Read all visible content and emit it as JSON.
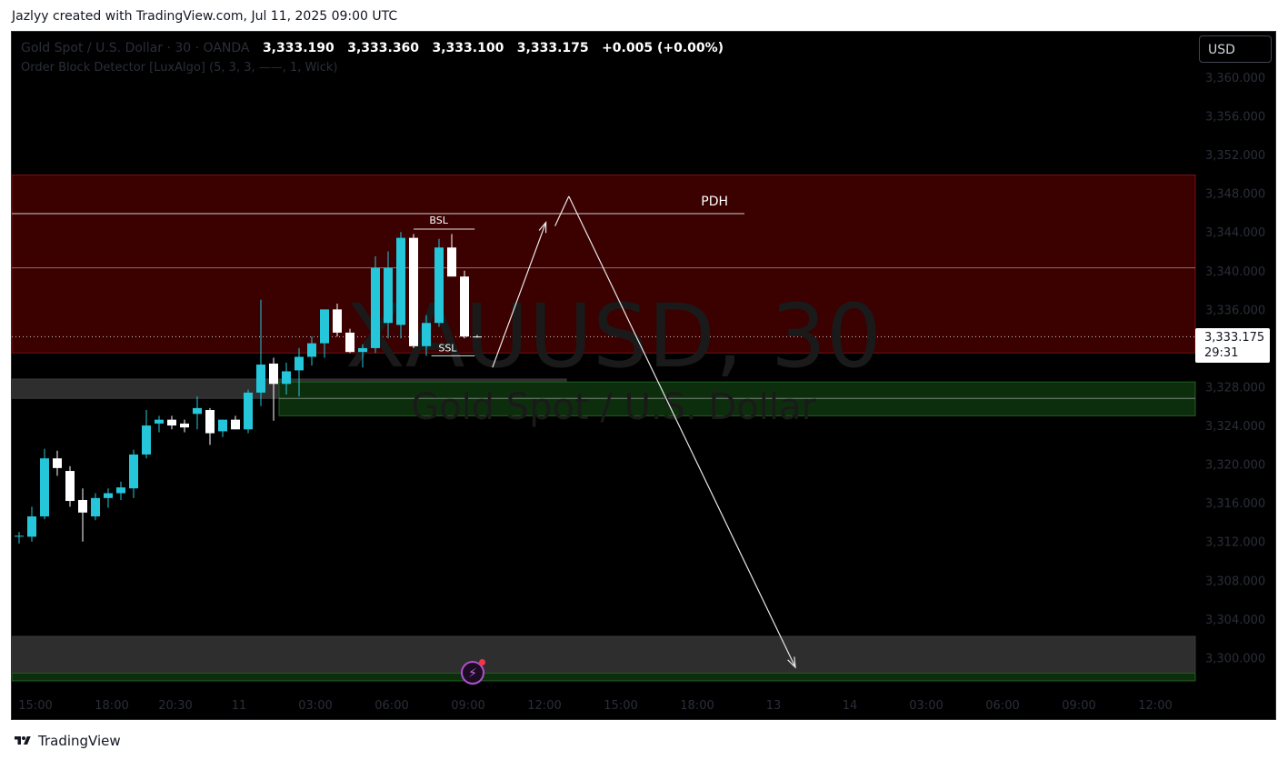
{
  "caption": "Jazlyy created with TradingView.com, Jul 11, 2025 09:00 UTC",
  "legend": {
    "symbol_desc": "Gold Spot / U.S. Dollar · 30 · OANDA",
    "open": "3,333.190",
    "high": "3,333.360",
    "low": "3,333.100",
    "close": "3,333.175",
    "change": "+0.005 (+0.00%)",
    "indicator": "Order Block Detector [LuxAlgo] (5, 3, 3, ——, 1, Wick)"
  },
  "currency_button": "USD",
  "last_price": {
    "price": "3,333.175",
    "countdown": "29:31"
  },
  "watermark": {
    "line1": "XAUUSD, 30",
    "line2": "Gold Spot / U.S. Dollar"
  },
  "brand": "TradingView",
  "colors": {
    "bull": "#26c6da",
    "bear": "#ffffff",
    "resistance_zone": "#3b0000",
    "demand_zone": "#0d2e0d",
    "gray_zone": "#2e2e2e",
    "background": "#000000"
  },
  "chart_data": {
    "type": "candlestick",
    "y_axis": {
      "min": 3296,
      "max": 3362,
      "ticks": [
        3360,
        3356,
        3352,
        3348,
        3344,
        3340,
        3336,
        3332,
        3328,
        3324,
        3320,
        3316,
        3312,
        3308,
        3304,
        3300
      ],
      "tick_labels": [
        "3,360.000",
        "3,356.000",
        "3,352.000",
        "3,348.000",
        "3,344.000",
        "3,340.000",
        "3,336.000",
        "3,332.000",
        "3,328.000",
        "3,324.000",
        "3,320.000",
        "3,316.000",
        "3,312.000",
        "3,308.000",
        "3,304.000",
        "3,300.000"
      ]
    },
    "x_axis": {
      "labels": [
        "15:00",
        "18:00",
        "20:30",
        "11",
        "03:00",
        "06:00",
        "09:00",
        "12:00",
        "15:00",
        "18:00",
        "13",
        "14",
        "03:00",
        "06:00",
        "09:00",
        "12:00"
      ],
      "label_bar_index": [
        0,
        6,
        11,
        16,
        22,
        28,
        34,
        40,
        46,
        52,
        58,
        64,
        70,
        76,
        82,
        88
      ]
    },
    "candles": [
      {
        "o": 3312.6,
        "h": 3313.0,
        "l": 3311.8,
        "c": 3312.6
      },
      {
        "o": 3312.5,
        "h": 3315.6,
        "l": 3312.0,
        "c": 3314.6
      },
      {
        "o": 3314.6,
        "h": 3321.6,
        "l": 3314.3,
        "c": 3320.6
      },
      {
        "o": 3320.6,
        "h": 3321.4,
        "l": 3318.8,
        "c": 3319.6
      },
      {
        "o": 3319.3,
        "h": 3319.8,
        "l": 3315.6,
        "c": 3316.2
      },
      {
        "o": 3316.3,
        "h": 3317.5,
        "l": 3312.0,
        "c": 3315.0
      },
      {
        "o": 3314.6,
        "h": 3317.0,
        "l": 3314.2,
        "c": 3316.5
      },
      {
        "o": 3316.5,
        "h": 3317.5,
        "l": 3315.5,
        "c": 3317.0
      },
      {
        "o": 3317.0,
        "h": 3318.2,
        "l": 3316.3,
        "c": 3317.6
      },
      {
        "o": 3317.5,
        "h": 3321.5,
        "l": 3316.5,
        "c": 3321.0
      },
      {
        "o": 3321.0,
        "h": 3325.6,
        "l": 3320.6,
        "c": 3324.0
      },
      {
        "o": 3324.2,
        "h": 3325.0,
        "l": 3323.3,
        "c": 3324.6
      },
      {
        "o": 3324.6,
        "h": 3325.0,
        "l": 3323.6,
        "c": 3324.0
      },
      {
        "o": 3324.2,
        "h": 3324.6,
        "l": 3323.3,
        "c": 3323.8
      },
      {
        "o": 3325.2,
        "h": 3327.0,
        "l": 3323.6,
        "c": 3325.8
      },
      {
        "o": 3325.6,
        "h": 3325.8,
        "l": 3322.0,
        "c": 3323.2
      },
      {
        "o": 3323.4,
        "h": 3324.6,
        "l": 3322.8,
        "c": 3324.6
      },
      {
        "o": 3324.6,
        "h": 3325.0,
        "l": 3323.6,
        "c": 3323.6
      },
      {
        "o": 3323.6,
        "h": 3327.7,
        "l": 3323.2,
        "c": 3327.4
      },
      {
        "o": 3327.4,
        "h": 3337.0,
        "l": 3326.0,
        "c": 3330.3
      },
      {
        "o": 3330.4,
        "h": 3331.0,
        "l": 3324.5,
        "c": 3328.3
      },
      {
        "o": 3328.3,
        "h": 3330.5,
        "l": 3327.2,
        "c": 3329.6
      },
      {
        "o": 3329.7,
        "h": 3332.0,
        "l": 3327.0,
        "c": 3331.1
      },
      {
        "o": 3331.1,
        "h": 3333.2,
        "l": 3330.2,
        "c": 3332.5
      },
      {
        "o": 3332.5,
        "h": 3336.0,
        "l": 3331.0,
        "c": 3336.0
      },
      {
        "o": 3336.0,
        "h": 3336.6,
        "l": 3333.2,
        "c": 3333.6
      },
      {
        "o": 3333.6,
        "h": 3334.0,
        "l": 3331.5,
        "c": 3331.6
      },
      {
        "o": 3331.6,
        "h": 3332.4,
        "l": 3330.0,
        "c": 3332.0
      },
      {
        "o": 3332.0,
        "h": 3341.5,
        "l": 3331.5,
        "c": 3340.3
      },
      {
        "o": 3334.6,
        "h": 3342.0,
        "l": 3333.0,
        "c": 3340.3
      },
      {
        "o": 3334.4,
        "h": 3344.0,
        "l": 3333.0,
        "c": 3343.4
      },
      {
        "o": 3343.4,
        "h": 3343.8,
        "l": 3332.0,
        "c": 3332.2
      },
      {
        "o": 3332.2,
        "h": 3335.4,
        "l": 3331.2,
        "c": 3334.6
      },
      {
        "o": 3334.6,
        "h": 3343.3,
        "l": 3334.2,
        "c": 3342.4
      },
      {
        "o": 3342.4,
        "h": 3343.8,
        "l": 3339.4,
        "c": 3339.4
      },
      {
        "o": 3339.4,
        "h": 3340.0,
        "l": 3333.0,
        "c": 3333.2
      },
      {
        "o": 3333.2,
        "h": 3333.36,
        "l": 3333.1,
        "c": 3333.175
      }
    ],
    "zones": [
      {
        "kind": "resistance",
        "from_bar": 0,
        "to_bar": 98,
        "y1": 3331.5,
        "y2": 3349.9
      },
      {
        "kind": "gray",
        "from_bar": 0,
        "to_bar": 43,
        "y1": 3326.8,
        "y2": 3328.8
      },
      {
        "kind": "demand",
        "from_bar": 21,
        "to_bar": 98,
        "y1": 3325.0,
        "y2": 3328.5
      },
      {
        "kind": "gray",
        "from_bar": 0,
        "to_bar": 98,
        "y1": 3298.4,
        "y2": 3302.2
      },
      {
        "kind": "demand",
        "from_bar": 0,
        "to_bar": 98,
        "y1": 3297.6,
        "y2": 3298.4
      }
    ],
    "levels": [
      {
        "label": "PDH",
        "price": 3345.9,
        "from_bar": 0,
        "to_bar": 57
      },
      {
        "label": "",
        "price": 3340.3,
        "from_bar": 0,
        "to_bar": 98
      },
      {
        "label": "",
        "price": 3326.8,
        "from_bar": 21,
        "to_bar": 98
      }
    ],
    "markers": [
      {
        "label": "BSL",
        "price": 3344.3,
        "from_bar": 31,
        "to_bar": 35.8
      },
      {
        "label": "SSL",
        "price": 3331.2,
        "from_bar": 32.4,
        "to_bar": 35.8
      }
    ],
    "projection_path": [
      {
        "bar": 37.2,
        "price": 3330.0
      },
      {
        "bar": 41.4,
        "price": 3345.0
      },
      {
        "bar": 43.2,
        "price": 3347.7
      },
      {
        "bar": 61.0,
        "price": 3299.0
      }
    ],
    "last_price": 3333.175
  }
}
